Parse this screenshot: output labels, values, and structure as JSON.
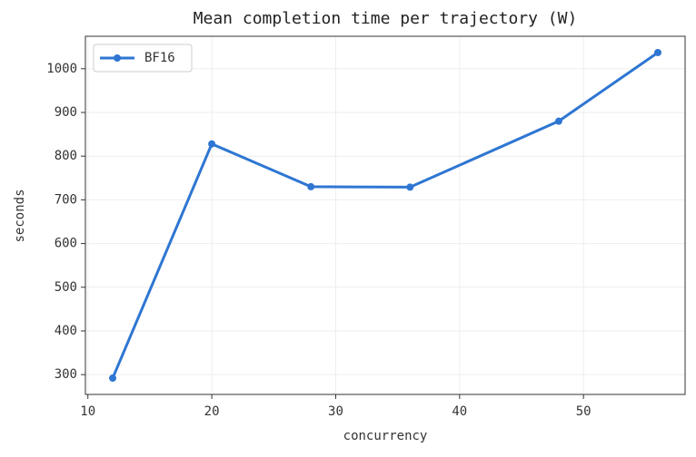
{
  "chart_data": {
    "type": "line",
    "title": "Mean completion time per trajectory (W)",
    "x_label": "concurrency",
    "y_label": "seconds",
    "x": [
      12,
      20,
      28,
      36,
      48,
      56
    ],
    "series": [
      {
        "name": "BF16",
        "color": "#2e76d2",
        "values": [
          292,
          828,
          730,
          729,
          880,
          1037
        ]
      }
    ],
    "xlim": [
      9.8,
      58.2
    ],
    "xticks": [
      10,
      20,
      30,
      40,
      50
    ],
    "ylim": [
      254.7,
      1074.3
    ],
    "yticks": [
      300,
      400,
      500,
      600,
      700,
      800,
      900,
      1000
    ],
    "grid": true,
    "legend": "upper-left"
  }
}
